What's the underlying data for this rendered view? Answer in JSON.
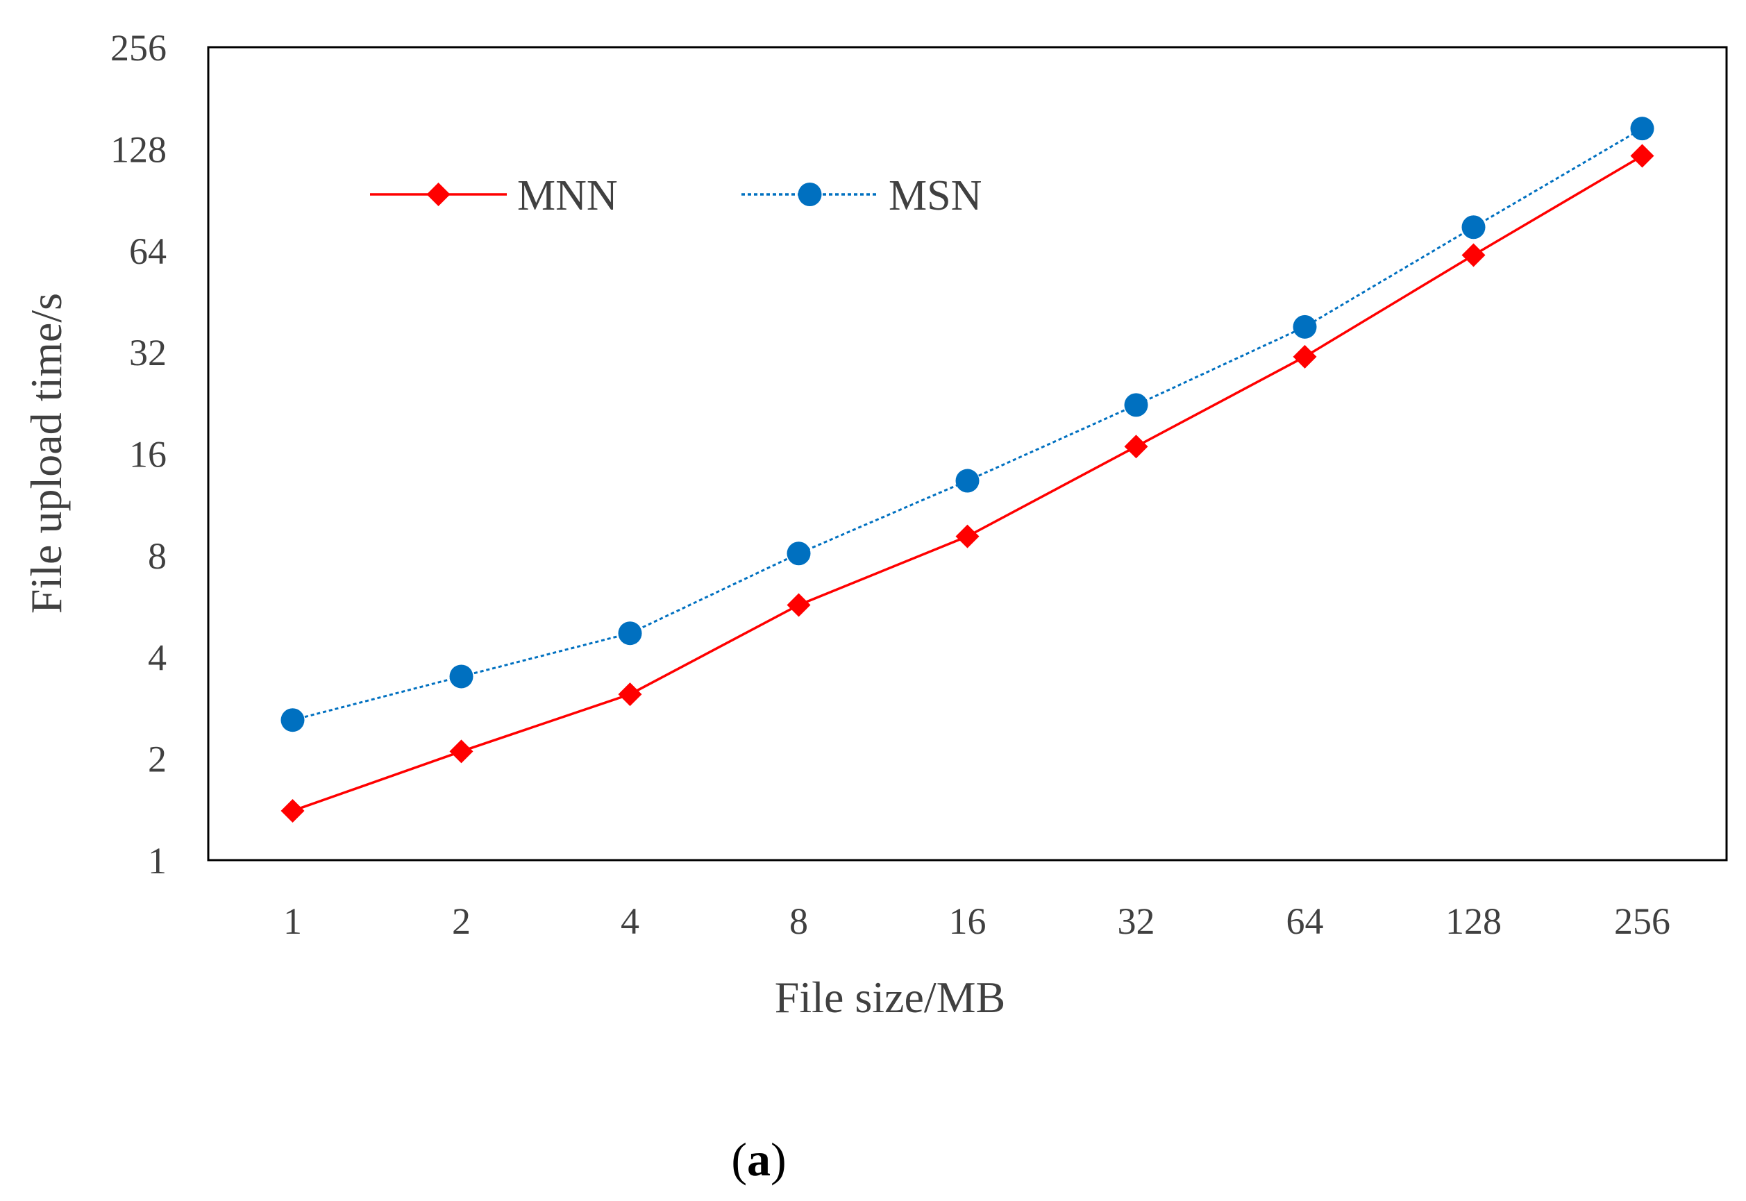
{
  "chart_data": {
    "type": "line",
    "title": "",
    "xlabel": "File size/MB",
    "ylabel": "File upload time/s",
    "y_scale": "log2",
    "ylim": [
      1,
      256
    ],
    "yticks": [
      "1",
      "2",
      "4",
      "8",
      "16",
      "32",
      "64",
      "128",
      "256"
    ],
    "categories": [
      "1",
      "2",
      "4",
      "8",
      "16",
      "32",
      "64",
      "128",
      "256"
    ],
    "series": [
      {
        "name": "MNN",
        "color": "#ff0000",
        "marker": "diamond",
        "line_style": "solid",
        "values": [
          1.4,
          2.1,
          3.1,
          5.7,
          9.1,
          16.8,
          31.0,
          62.0,
          122.0
        ]
      },
      {
        "name": "MSN",
        "color": "#0070c0",
        "marker": "circle",
        "line_style": "dotted",
        "values": [
          2.6,
          3.5,
          4.7,
          8.1,
          13.3,
          22.3,
          38.0,
          75.0,
          147.0
        ]
      }
    ],
    "legend_position": "top-left",
    "grid": false,
    "panel_label": {
      "open": "(",
      "letter": "a",
      "close": ")"
    }
  }
}
